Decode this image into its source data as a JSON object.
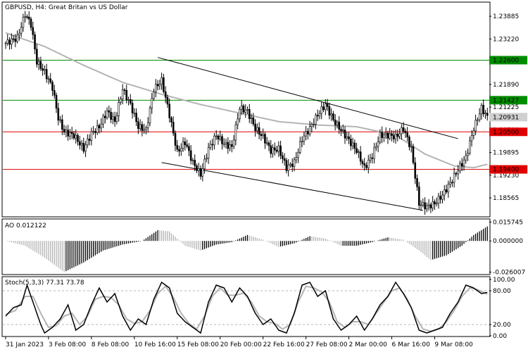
{
  "chart_data": {
    "type": "candlestick",
    "symbol_header": "GBPUSD, H4:  Great Britan vs US Dollar",
    "colors": {
      "candle": "#000000",
      "ma": "#b4b4b4",
      "support_resistance": "#e00000",
      "green_level": "#008c00",
      "channel": "#000000",
      "ao_up": "#000000",
      "ao_down": "#b4b4b4",
      "stoch_main": "#000000",
      "stoch_signal": "#b4b4b4"
    },
    "price_axis": {
      "range": [
        1.1803,
        1.2428
      ],
      "ticks": [
        "1.23885",
        "1.23220",
        "1.22555",
        "1.21890",
        "1.21225",
        "1.20560",
        "1.19895",
        "1.19230",
        "1.18565"
      ]
    },
    "horizontal_levels": [
      {
        "value": 1.226,
        "label": "1.22600",
        "color": "green"
      },
      {
        "value": 1.21427,
        "label": "1.21427",
        "color": "green"
      },
      {
        "value": 1.205,
        "label": "1.20500",
        "color": "red"
      },
      {
        "value": 1.194,
        "label": "1.19400",
        "color": "red"
      }
    ],
    "current_price": {
      "value": 1.20931,
      "label": "1.20931"
    },
    "channel": {
      "upper": [
        {
          "bar": 78,
          "price": 1.2268
        },
        {
          "bar": 232,
          "price": 1.203
        }
      ],
      "lower": [
        {
          "bar": 80,
          "price": 1.196
        },
        {
          "bar": 214,
          "price": 1.182
        }
      ]
    },
    "candles_anchor_closes": [
      [
        0,
        1.231
      ],
      [
        6,
        1.2325
      ],
      [
        10,
        1.2395
      ],
      [
        13,
        1.2365
      ],
      [
        16,
        1.2255
      ],
      [
        20,
        1.2225
      ],
      [
        24,
        1.218
      ],
      [
        27,
        1.209
      ],
      [
        30,
        1.205
      ],
      [
        35,
        1.204
      ],
      [
        40,
        1.2
      ],
      [
        44,
        1.2045
      ],
      [
        48,
        1.2065
      ],
      [
        52,
        1.211
      ],
      [
        56,
        1.208
      ],
      [
        60,
        1.2175
      ],
      [
        64,
        1.213
      ],
      [
        68,
        1.2065
      ],
      [
        72,
        1.2055
      ],
      [
        76,
        1.2175
      ],
      [
        80,
        1.22
      ],
      [
        84,
        1.21
      ],
      [
        88,
        1.199
      ],
      [
        92,
        1.202
      ],
      [
        96,
        1.196
      ],
      [
        100,
        1.1925
      ],
      [
        104,
        1.2
      ],
      [
        108,
        1.204
      ],
      [
        112,
        1.2015
      ],
      [
        116,
        1.2005
      ],
      [
        120,
        1.212
      ],
      [
        124,
        1.211
      ],
      [
        128,
        1.206
      ],
      [
        132,
        1.2035
      ],
      [
        136,
        1.1995
      ],
      [
        140,
        1.2
      ],
      [
        144,
        1.1945
      ],
      [
        148,
        1.196
      ],
      [
        152,
        1.203
      ],
      [
        156,
        1.206
      ],
      [
        160,
        1.21
      ],
      [
        164,
        1.213
      ],
      [
        168,
        1.2085
      ],
      [
        172,
        1.2055
      ],
      [
        176,
        1.2025
      ],
      [
        180,
        1.1995
      ],
      [
        184,
        1.1945
      ],
      [
        188,
        1.198
      ],
      [
        192,
        1.204
      ],
      [
        196,
        1.204
      ],
      [
        200,
        1.2035
      ],
      [
        204,
        1.206
      ],
      [
        208,
        1.2
      ],
      [
        212,
        1.184
      ],
      [
        216,
        1.183
      ],
      [
        220,
        1.184
      ],
      [
        224,
        1.1865
      ],
      [
        228,
        1.19
      ],
      [
        232,
        1.194
      ],
      [
        236,
        1.1975
      ],
      [
        240,
        1.206
      ],
      [
        244,
        1.212
      ],
      [
        247,
        1.2093
      ]
    ],
    "ma_anchors": [
      [
        0,
        1.234
      ],
      [
        20,
        1.23
      ],
      [
        40,
        1.2245
      ],
      [
        60,
        1.2195
      ],
      [
        80,
        1.216
      ],
      [
        100,
        1.213
      ],
      [
        120,
        1.2105
      ],
      [
        140,
        1.208
      ],
      [
        160,
        1.207
      ],
      [
        180,
        1.2065
      ],
      [
        200,
        1.204
      ],
      [
        215,
        1.1985
      ],
      [
        230,
        1.195
      ],
      [
        240,
        1.1945
      ],
      [
        247,
        1.1955
      ]
    ],
    "ao": {
      "axis_ticks": [
        "0.015745",
        "0.000000",
        "-0.026007"
      ],
      "range": [
        -0.0275,
        0.0172
      ],
      "header": "AO 0.012122",
      "anchors": [
        [
          0,
          0.0
        ],
        [
          10,
          -0.004
        ],
        [
          20,
          -0.014
        ],
        [
          30,
          -0.026
        ],
        [
          40,
          -0.018
        ],
        [
          50,
          -0.008
        ],
        [
          60,
          -0.003
        ],
        [
          70,
          0.0
        ],
        [
          78,
          0.009
        ],
        [
          84,
          0.008
        ],
        [
          92,
          -0.004
        ],
        [
          100,
          -0.008
        ],
        [
          108,
          -0.003
        ],
        [
          116,
          -0.001
        ],
        [
          124,
          0.005
        ],
        [
          132,
          0.001
        ],
        [
          140,
          -0.005
        ],
        [
          148,
          -0.002
        ],
        [
          156,
          0.004
        ],
        [
          164,
          0.002
        ],
        [
          172,
          -0.004
        ],
        [
          180,
          -0.004
        ],
        [
          188,
          -0.001
        ],
        [
          196,
          0.003
        ],
        [
          204,
          0.001
        ],
        [
          212,
          -0.008
        ],
        [
          218,
          -0.016
        ],
        [
          226,
          -0.012
        ],
        [
          234,
          -0.004
        ],
        [
          240,
          0.005
        ],
        [
          247,
          0.0121
        ]
      ]
    },
    "stochastic": {
      "header": "Stoch(5,3,3) 77.31 73.78",
      "axis_ticks": [
        "100.00",
        "80.00",
        "20.00",
        "0.00"
      ],
      "range": [
        0,
        100
      ],
      "main_anchors": [
        [
          0,
          35
        ],
        [
          4,
          50
        ],
        [
          8,
          55
        ],
        [
          11,
          90
        ],
        [
          14,
          60
        ],
        [
          18,
          20
        ],
        [
          20,
          5
        ],
        [
          24,
          15
        ],
        [
          28,
          30
        ],
        [
          32,
          55
        ],
        [
          36,
          10
        ],
        [
          40,
          20
        ],
        [
          44,
          55
        ],
        [
          48,
          85
        ],
        [
          52,
          60
        ],
        [
          56,
          75
        ],
        [
          60,
          35
        ],
        [
          64,
          10
        ],
        [
          68,
          30
        ],
        [
          72,
          20
        ],
        [
          76,
          65
        ],
        [
          80,
          95
        ],
        [
          84,
          85
        ],
        [
          88,
          40
        ],
        [
          92,
          25
        ],
        [
          96,
          15
        ],
        [
          100,
          5
        ],
        [
          104,
          60
        ],
        [
          108,
          90
        ],
        [
          112,
          85
        ],
        [
          116,
          60
        ],
        [
          120,
          85
        ],
        [
          124,
          70
        ],
        [
          128,
          40
        ],
        [
          132,
          20
        ],
        [
          136,
          30
        ],
        [
          140,
          10
        ],
        [
          144,
          5
        ],
        [
          148,
          40
        ],
        [
          152,
          90
        ],
        [
          156,
          95
        ],
        [
          160,
          70
        ],
        [
          164,
          80
        ],
        [
          168,
          30
        ],
        [
          172,
          10
        ],
        [
          176,
          20
        ],
        [
          180,
          35
        ],
        [
          184,
          10
        ],
        [
          188,
          30
        ],
        [
          192,
          55
        ],
        [
          196,
          70
        ],
        [
          200,
          95
        ],
        [
          204,
          75
        ],
        [
          208,
          50
        ],
        [
          212,
          10
        ],
        [
          216,
          5
        ],
        [
          220,
          10
        ],
        [
          224,
          15
        ],
        [
          228,
          40
        ],
        [
          232,
          60
        ],
        [
          236,
          90
        ],
        [
          240,
          85
        ],
        [
          244,
          75
        ],
        [
          247,
          77
        ]
      ],
      "signal_anchors": [
        [
          0,
          38
        ],
        [
          5,
          45
        ],
        [
          10,
          70
        ],
        [
          14,
          70
        ],
        [
          18,
          40
        ],
        [
          22,
          15
        ],
        [
          26,
          18
        ],
        [
          30,
          35
        ],
        [
          34,
          40
        ],
        [
          38,
          20
        ],
        [
          42,
          35
        ],
        [
          46,
          65
        ],
        [
          50,
          70
        ],
        [
          54,
          68
        ],
        [
          58,
          55
        ],
        [
          62,
          30
        ],
        [
          66,
          22
        ],
        [
          70,
          25
        ],
        [
          74,
          45
        ],
        [
          78,
          75
        ],
        [
          82,
          88
        ],
        [
          86,
          68
        ],
        [
          90,
          40
        ],
        [
          94,
          22
        ],
        [
          98,
          12
        ],
        [
          102,
          35
        ],
        [
          106,
          70
        ],
        [
          110,
          85
        ],
        [
          114,
          72
        ],
        [
          118,
          72
        ],
        [
          122,
          76
        ],
        [
          126,
          60
        ],
        [
          130,
          35
        ],
        [
          134,
          25
        ],
        [
          138,
          22
        ],
        [
          142,
          12
        ],
        [
          146,
          20
        ],
        [
          150,
          60
        ],
        [
          154,
          88
        ],
        [
          158,
          85
        ],
        [
          162,
          78
        ],
        [
          166,
          60
        ],
        [
          170,
          25
        ],
        [
          174,
          15
        ],
        [
          178,
          25
        ],
        [
          182,
          25
        ],
        [
          186,
          20
        ],
        [
          190,
          40
        ],
        [
          194,
          60
        ],
        [
          198,
          80
        ],
        [
          202,
          85
        ],
        [
          206,
          65
        ],
        [
          210,
          35
        ],
        [
          214,
          12
        ],
        [
          218,
          8
        ],
        [
          222,
          12
        ],
        [
          226,
          25
        ],
        [
          230,
          45
        ],
        [
          234,
          70
        ],
        [
          238,
          85
        ],
        [
          242,
          82
        ],
        [
          247,
          74
        ]
      ]
    },
    "x_axis_labels": [
      {
        "bar": 0,
        "label": "31 Jan 2023"
      },
      {
        "bar": 22,
        "label": "3 Feb 08:00"
      },
      {
        "bar": 44,
        "label": "8 Feb 08:00"
      },
      {
        "bar": 66,
        "label": "10 Feb 16:00"
      },
      {
        "bar": 88,
        "label": "15 Feb 08:00"
      },
      {
        "bar": 110,
        "label": "20 Feb 00:00"
      },
      {
        "bar": 132,
        "label": "22 Feb 16:00"
      },
      {
        "bar": 154,
        "label": "27 Feb 08:00"
      },
      {
        "bar": 176,
        "label": "2 Mar 00:00"
      },
      {
        "bar": 198,
        "label": "6 Mar 16:00"
      },
      {
        "bar": 220,
        "label": "9 Mar 08:00"
      }
    ],
    "bar_count": 248
  }
}
